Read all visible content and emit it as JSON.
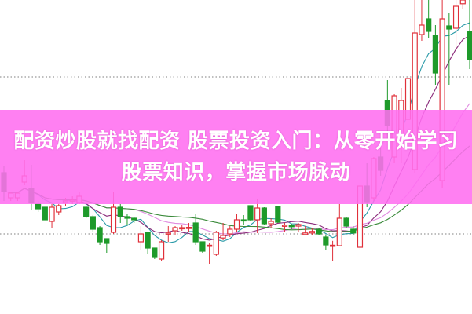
{
  "banner": {
    "title_line1": "配资炒股就找配资 股票投资入门：从零开始学习",
    "title_line2": "股票知识，掌握市场脉动",
    "background": "#ff6ef0"
  },
  "chart_data": {
    "type": "candlestick",
    "title": "",
    "xlabel": "",
    "ylabel": "",
    "ylim": [
      0,
      100
    ],
    "grid": "dotted horizontal",
    "reference_levels": [
      75.5,
      25.5
    ],
    "colors": {
      "up": "#e0303a",
      "down": "#1e9a2a",
      "grid": "#999999",
      "ma": [
        "#2a9aa8",
        "#8a2a7a",
        "#e08ae0",
        "#3a8a3a"
      ]
    },
    "moving_average_periods": [
      5,
      10,
      20,
      30
    ],
    "candles_ohlc": [
      [
        45,
        39,
        47,
        36
      ],
      [
        37,
        38.5,
        39,
        36
      ],
      [
        37,
        38.5,
        39,
        36
      ],
      [
        42,
        44,
        49,
        41
      ],
      [
        40,
        35.5,
        47.5,
        33
      ],
      [
        35,
        33.5,
        36,
        32.5
      ],
      [
        34,
        30,
        34,
        30
      ],
      [
        29.5,
        34,
        35,
        27.5
      ],
      [
        32.5,
        34.5,
        35,
        31.5
      ],
      [
        35.5,
        36,
        37,
        34.5
      ],
      [
        36,
        36.3,
        37.5,
        35
      ],
      [
        35.5,
        37.5,
        39,
        35
      ],
      [
        34,
        31,
        34.5,
        30.5
      ],
      [
        31,
        27,
        31.5,
        26
      ],
      [
        27.5,
        23,
        28,
        22
      ],
      [
        24,
        22.5,
        24,
        19.5
      ],
      [
        26,
        34,
        39,
        25.5
      ],
      [
        34,
        31,
        35,
        29
      ],
      [
        31,
        30.5,
        32,
        28.5
      ],
      [
        30.5,
        30,
        31,
        29
      ],
      [
        23,
        25.5,
        28,
        20.5
      ],
      [
        26,
        21,
        26,
        19
      ],
      [
        21,
        18,
        21,
        17.5
      ],
      [
        17.5,
        23,
        23.5,
        17
      ],
      [
        25.5,
        25.8,
        28,
        23
      ],
      [
        26.5,
        27.5,
        28,
        25
      ],
      [
        27.5,
        27.5,
        28.5,
        26.5
      ],
      [
        27.5,
        27.6,
        29,
        26
      ],
      [
        29,
        23,
        32,
        22
      ],
      [
        23,
        20,
        23,
        19.5
      ],
      [
        21.7,
        21.9,
        22.5,
        16
      ],
      [
        19,
        26,
        26.5,
        18.5
      ],
      [
        24.2,
        25,
        29,
        23.5
      ],
      [
        25.5,
        27,
        28,
        24.5
      ],
      [
        27,
        30,
        32,
        26
      ],
      [
        30,
        29.8,
        31.5,
        28.5
      ],
      [
        34.5,
        30,
        34.5,
        29.5
      ],
      [
        30,
        33.75,
        36.75,
        25.75
      ],
      [
        33.75,
        28.75,
        34,
        28.5
      ],
      [
        28.75,
        29.5,
        30.5,
        27.5
      ],
      [
        34.25,
        29.25,
        34.5,
        29
      ],
      [
        28.25,
        28.3,
        29,
        26
      ],
      [
        28.3,
        27.8,
        28.7,
        27
      ],
      [
        28,
        28.5,
        29,
        26
      ],
      [
        25.3,
        25.8,
        28,
        25
      ],
      [
        25.8,
        26.3,
        27.5,
        25
      ],
      [
        27,
        25.5,
        27.5,
        25
      ],
      [
        24.5,
        22,
        25,
        20.5
      ],
      [
        21.7,
        21.9,
        23.3,
        17
      ],
      [
        21.75,
        30.5,
        35,
        21.5
      ],
      [
        30.5,
        28,
        31,
        27.5
      ],
      [
        27,
        25.8,
        28,
        25
      ],
      [
        21.25,
        40.75,
        45,
        20.5
      ],
      [
        40.75,
        35.75,
        48,
        34
      ],
      [
        37,
        49.5,
        50,
        36
      ],
      [
        50,
        45.75,
        53,
        44
      ],
      [
        68,
        60,
        74.5,
        55
      ],
      [
        50,
        69.5,
        70,
        48
      ],
      [
        55,
        68,
        72,
        48
      ],
      [
        62,
        75,
        80,
        55
      ],
      [
        46,
        89.5,
        100,
        45
      ],
      [
        89,
        92,
        100,
        87
      ],
      [
        94,
        90,
        100,
        88
      ],
      [
        88.75,
        76.75,
        92,
        73
      ],
      [
        42.5,
        94,
        100,
        40
      ],
      [
        91.75,
        90.75,
        96,
        73
      ],
      [
        91,
        98,
        100,
        84
      ],
      [
        98.8,
        100,
        100,
        97
      ],
      [
        90,
        81,
        100,
        78
      ]
    ]
  }
}
